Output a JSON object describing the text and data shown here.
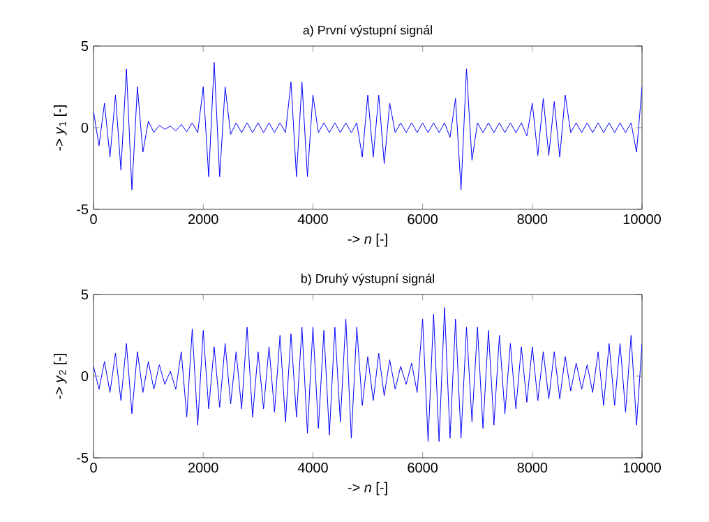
{
  "chart_data": [
    {
      "type": "line",
      "title": "a) První výstupní signál",
      "xlabel": "-> *n* [-]",
      "ylabel": "-> *y*$_{1}$ [-]",
      "xlim": [
        0,
        10000
      ],
      "ylim": [
        -5,
        5
      ],
      "xticks": [
        0,
        2000,
        4000,
        6000,
        8000,
        10000
      ],
      "yticks": [
        -5,
        0,
        5
      ],
      "x": [
        0,
        100,
        200,
        300,
        400,
        500,
        600,
        700,
        800,
        900,
        1000,
        1100,
        1200,
        1300,
        1400,
        1500,
        1600,
        1700,
        1800,
        1900,
        2000,
        2100,
        2200,
        2300,
        2400,
        2500,
        2600,
        2700,
        2800,
        2900,
        3000,
        3100,
        3200,
        3300,
        3400,
        3500,
        3600,
        3700,
        3800,
        3900,
        4000,
        4100,
        4200,
        4300,
        4400,
        4500,
        4600,
        4700,
        4800,
        4900,
        5000,
        5100,
        5200,
        5300,
        5400,
        5500,
        5600,
        5700,
        5800,
        5900,
        6000,
        6100,
        6200,
        6300,
        6400,
        6500,
        6600,
        6700,
        6800,
        6900,
        7000,
        7100,
        7200,
        7300,
        7400,
        7500,
        7600,
        7700,
        7800,
        7900,
        8000,
        8100,
        8200,
        8300,
        8400,
        8500,
        8600,
        8700,
        8800,
        8900,
        9000,
        9100,
        9200,
        9300,
        9400,
        9500,
        9600,
        9700,
        9800,
        9900,
        10000
      ],
      "series": [
        {
          "color": "#0000ff",
          "values": [
            1.0,
            -1.1,
            1.5,
            -1.8,
            2.0,
            -2.6,
            3.6,
            -3.8,
            2.5,
            -1.5,
            0.4,
            -0.3,
            0.15,
            -0.1,
            0.1,
            -0.2,
            0.2,
            -0.25,
            0.3,
            -0.3,
            2.5,
            -3.0,
            4.0,
            -3.0,
            2.5,
            -0.4,
            0.3,
            -0.3,
            0.3,
            -0.3,
            0.3,
            -0.3,
            0.3,
            -0.3,
            0.3,
            -0.3,
            2.8,
            -3.0,
            2.8,
            -3.0,
            2.0,
            -0.3,
            0.3,
            -0.3,
            0.3,
            -0.3,
            0.3,
            -0.3,
            0.3,
            -1.8,
            2.0,
            -1.8,
            2.0,
            -2.2,
            1.5,
            -0.3,
            0.3,
            -0.3,
            0.3,
            -0.3,
            0.3,
            -0.3,
            0.3,
            -0.3,
            0.3,
            -0.6,
            1.8,
            -3.8,
            3.6,
            -2.0,
            0.3,
            -0.3,
            0.3,
            -0.3,
            0.3,
            -0.3,
            0.3,
            -0.3,
            0.3,
            -0.5,
            1.5,
            -1.7,
            1.8,
            -1.7,
            1.6,
            -1.8,
            2.0,
            -0.3,
            0.3,
            -0.3,
            0.3,
            -0.3,
            0.3,
            -0.3,
            0.3,
            -0.3,
            0.3,
            -0.3,
            0.3,
            -1.5,
            2.5
          ]
        }
      ]
    },
    {
      "type": "line",
      "title": "b) Druhý výstupní signál",
      "xlabel": "-> *n* [-]",
      "ylabel": "-> *y*$_{2}$ [-]",
      "xlim": [
        0,
        10000
      ],
      "ylim": [
        -5,
        5
      ],
      "xticks": [
        0,
        2000,
        4000,
        6000,
        8000,
        10000
      ],
      "yticks": [
        -5,
        0,
        5
      ],
      "x": [
        0,
        100,
        200,
        300,
        400,
        500,
        600,
        700,
        800,
        900,
        1000,
        1100,
        1200,
        1300,
        1400,
        1500,
        1600,
        1700,
        1800,
        1900,
        2000,
        2100,
        2200,
        2300,
        2400,
        2500,
        2600,
        2700,
        2800,
        2900,
        3000,
        3100,
        3200,
        3300,
        3400,
        3500,
        3600,
        3700,
        3800,
        3900,
        4000,
        4100,
        4200,
        4300,
        4400,
        4500,
        4600,
        4700,
        4800,
        4900,
        5000,
        5100,
        5200,
        5300,
        5400,
        5500,
        5600,
        5700,
        5800,
        5900,
        6000,
        6100,
        6200,
        6300,
        6400,
        6500,
        6600,
        6700,
        6800,
        6900,
        7000,
        7100,
        7200,
        7300,
        7400,
        7500,
        7600,
        7700,
        7800,
        7900,
        8000,
        8100,
        8200,
        8300,
        8400,
        8500,
        8600,
        8700,
        8800,
        8900,
        9000,
        9100,
        9200,
        9300,
        9400,
        9500,
        9600,
        9700,
        9800,
        9900,
        10000
      ],
      "series": [
        {
          "color": "#0000ff",
          "values": [
            0.6,
            -0.8,
            0.9,
            -1.0,
            1.4,
            -1.5,
            2.0,
            -2.3,
            1.5,
            -1.0,
            0.9,
            -0.8,
            0.7,
            -0.5,
            0.3,
            -0.8,
            1.5,
            -2.5,
            2.9,
            -3.0,
            2.8,
            -2.0,
            1.8,
            -1.9,
            2.0,
            -1.7,
            1.5,
            -2.0,
            3.0,
            -2.5,
            1.5,
            -2.0,
            1.8,
            -2.2,
            2.5,
            -2.8,
            2.6,
            -2.5,
            3.0,
            -3.5,
            3.0,
            -3.2,
            2.8,
            -3.6,
            3.0,
            -2.8,
            3.5,
            -3.8,
            3.0,
            -1.8,
            1.2,
            -1.5,
            1.4,
            -1.2,
            1.0,
            -0.8,
            0.6,
            -0.5,
            0.8,
            -1.0,
            3.5,
            -4.0,
            3.8,
            -4.0,
            4.2,
            -3.8,
            3.5,
            -3.8,
            3.0,
            -2.8,
            3.0,
            -3.2,
            2.8,
            -3.0,
            2.5,
            -2.3,
            2.0,
            -2.0,
            1.8,
            -1.6,
            1.8,
            -1.5,
            1.5,
            -1.4,
            1.5,
            -1.4,
            1.2,
            -0.9,
            0.8,
            -0.8,
            0.7,
            -1.0,
            1.5,
            -1.8,
            2.0,
            -1.8,
            2.0,
            -2.2,
            2.5,
            -3.0,
            2.0
          ]
        }
      ]
    }
  ]
}
